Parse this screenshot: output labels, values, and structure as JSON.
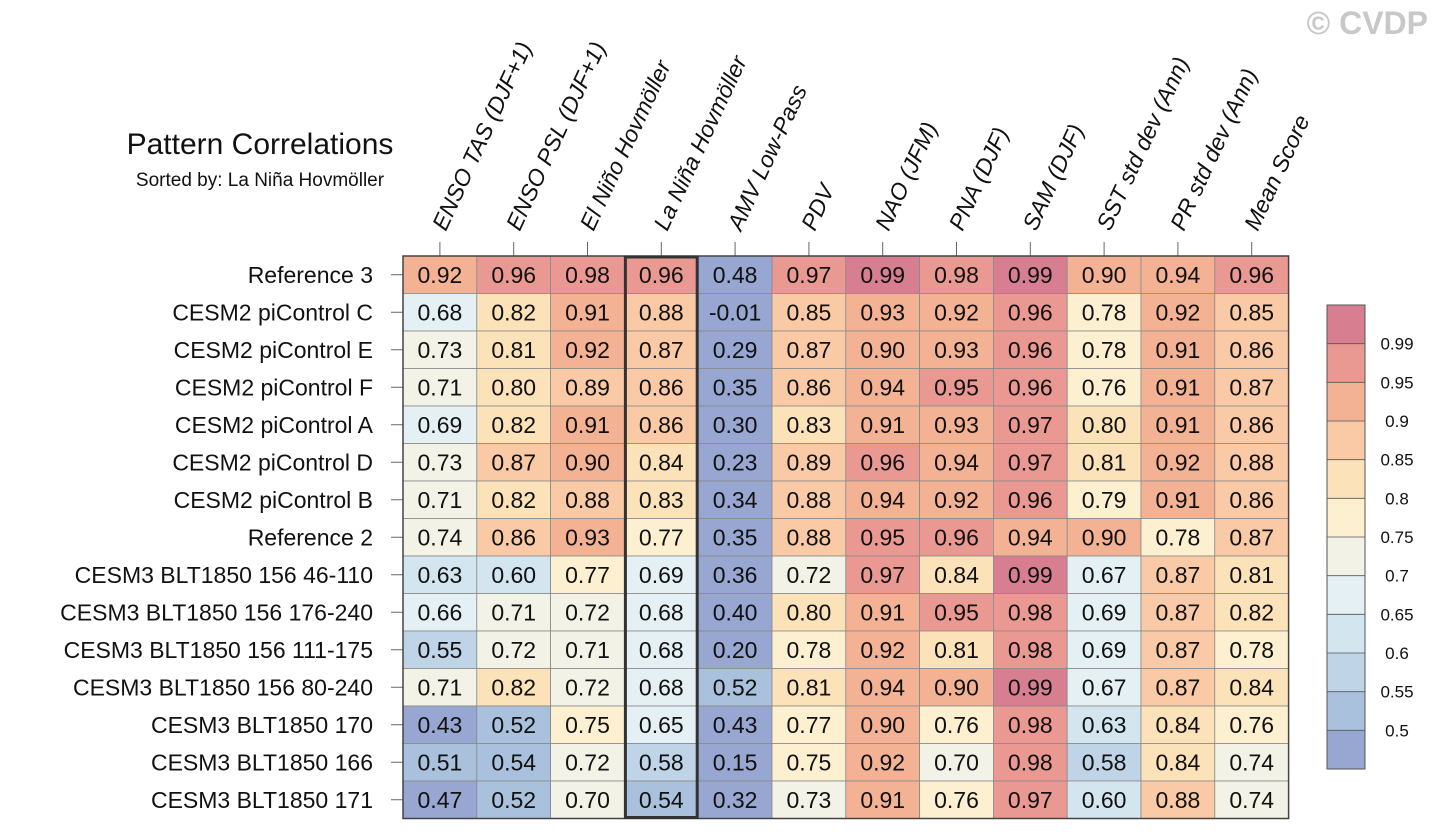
{
  "watermark": "© CVDP",
  "chart_data": {
    "type": "heatmap",
    "title": "Pattern Correlations",
    "subtitle": "Sorted by: La Niña Hovmöller",
    "columns": [
      "ENSO TAS (DJF+1)",
      "ENSO PSL (DJF+1)",
      "El Niño Hovmöller",
      "La Niña Hovmöller",
      "AMV Low-Pass",
      "PDV",
      "NAO (JFM)",
      "PNA (DJF)",
      "SAM (DJF)",
      "SST std dev (Ann)",
      "PR std dev (Ann)",
      "Mean Score"
    ],
    "rows": [
      "Reference 3",
      "CESM2 piControl C",
      "CESM2 piControl E",
      "CESM2 piControl F",
      "CESM2 piControl A",
      "CESM2 piControl D",
      "CESM2 piControl B",
      "Reference 2",
      "CESM3 BLT1850 156 46-110",
      "CESM3 BLT1850 156 176-240",
      "CESM3 BLT1850 156 111-175",
      "CESM3 BLT1850 156 80-240",
      "CESM3 BLT1850 170",
      "CESM3 BLT1850 166",
      "CESM3 BLT1850 171"
    ],
    "values": [
      [
        "0.92",
        "0.96",
        "0.98",
        "0.96",
        "0.48",
        "0.97",
        "0.99",
        "0.98",
        "0.99",
        "0.90",
        "0.94",
        "0.96"
      ],
      [
        "0.68",
        "0.82",
        "0.91",
        "0.88",
        "-0.01",
        "0.85",
        "0.93",
        "0.92",
        "0.96",
        "0.78",
        "0.92",
        "0.85"
      ],
      [
        "0.73",
        "0.81",
        "0.92",
        "0.87",
        "0.29",
        "0.87",
        "0.90",
        "0.93",
        "0.96",
        "0.78",
        "0.91",
        "0.86"
      ],
      [
        "0.71",
        "0.80",
        "0.89",
        "0.86",
        "0.35",
        "0.86",
        "0.94",
        "0.95",
        "0.96",
        "0.76",
        "0.91",
        "0.87"
      ],
      [
        "0.69",
        "0.82",
        "0.91",
        "0.86",
        "0.30",
        "0.83",
        "0.91",
        "0.93",
        "0.97",
        "0.80",
        "0.91",
        "0.86"
      ],
      [
        "0.73",
        "0.87",
        "0.90",
        "0.84",
        "0.23",
        "0.89",
        "0.96",
        "0.94",
        "0.97",
        "0.81",
        "0.92",
        "0.88"
      ],
      [
        "0.71",
        "0.82",
        "0.88",
        "0.83",
        "0.34",
        "0.88",
        "0.94",
        "0.92",
        "0.96",
        "0.79",
        "0.91",
        "0.86"
      ],
      [
        "0.74",
        "0.86",
        "0.93",
        "0.77",
        "0.35",
        "0.88",
        "0.95",
        "0.96",
        "0.94",
        "0.90",
        "0.78",
        "0.87"
      ],
      [
        "0.63",
        "0.60",
        "0.77",
        "0.69",
        "0.36",
        "0.72",
        "0.97",
        "0.84",
        "0.99",
        "0.67",
        "0.87",
        "0.81"
      ],
      [
        "0.66",
        "0.71",
        "0.72",
        "0.68",
        "0.40",
        "0.80",
        "0.91",
        "0.95",
        "0.98",
        "0.69",
        "0.87",
        "0.82"
      ],
      [
        "0.55",
        "0.72",
        "0.71",
        "0.68",
        "0.20",
        "0.78",
        "0.92",
        "0.81",
        "0.98",
        "0.69",
        "0.87",
        "0.78"
      ],
      [
        "0.71",
        "0.82",
        "0.72",
        "0.68",
        "0.52",
        "0.81",
        "0.94",
        "0.90",
        "0.99",
        "0.67",
        "0.87",
        "0.84"
      ],
      [
        "0.43",
        "0.52",
        "0.75",
        "0.65",
        "0.43",
        "0.77",
        "0.90",
        "0.76",
        "0.98",
        "0.63",
        "0.84",
        "0.76"
      ],
      [
        "0.51",
        "0.54",
        "0.72",
        "0.58",
        "0.15",
        "0.75",
        "0.92",
        "0.70",
        "0.98",
        "0.58",
        "0.84",
        "0.74"
      ],
      [
        "0.47",
        "0.52",
        "0.70",
        "0.54",
        "0.32",
        "0.73",
        "0.91",
        "0.76",
        "0.97",
        "0.60",
        "0.88",
        "0.74"
      ]
    ],
    "highlighted_column": "La Niña Hovmöller",
    "colorbar": {
      "labels": [
        "0.99",
        "0.95",
        "0.9",
        "0.85",
        "0.8",
        "0.75",
        "0.7",
        "0.65",
        "0.6",
        "0.55",
        "0.5"
      ],
      "thresholds": [
        0.5,
        0.55,
        0.6,
        0.65,
        0.7,
        0.75,
        0.8,
        0.85,
        0.9,
        0.95,
        0.99
      ],
      "colors": [
        "#97a7d1",
        "#a9c1dc",
        "#bfd4e6",
        "#d3e5ef",
        "#e4f0f4",
        "#f2f2e6",
        "#fcf0d0",
        "#fce2b9",
        "#f9caa5",
        "#f4b295",
        "#ea9892",
        "#d77f91"
      ]
    }
  }
}
